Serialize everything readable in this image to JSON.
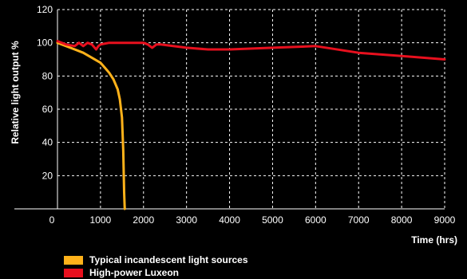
{
  "chart_data": {
    "type": "line",
    "xlabel": "Time (hrs)",
    "ylabel": "Relative light output %",
    "xlim": [
      0,
      9000
    ],
    "ylim": [
      0,
      120
    ],
    "origin_label": "0",
    "x_ticks": [
      "1000",
      "2000",
      "3000",
      "4000",
      "5000",
      "6000",
      "7000",
      "8000",
      "9000"
    ],
    "y_ticks": [
      "20",
      "40",
      "60",
      "80",
      "100",
      "120"
    ],
    "grid": true,
    "legend_position": "bottom-left",
    "series": [
      {
        "name": "Typical incandescent light sources",
        "color": "#FFB21A",
        "x": [
          0,
          200,
          400,
          600,
          800,
          1000,
          1100,
          1200,
          1300,
          1400,
          1450,
          1500,
          1530,
          1550,
          1560,
          1565
        ],
        "y": [
          100,
          98,
          96,
          94,
          91,
          88,
          85,
          82,
          78,
          72,
          66,
          55,
          35,
          10,
          2,
          0
        ]
      },
      {
        "name": "High-power Luxeon",
        "color": "#E8101E",
        "x": [
          0,
          200,
          400,
          500,
          600,
          700,
          800,
          900,
          950,
          1000,
          1200,
          1500,
          2000,
          2100,
          2200,
          2300,
          2400,
          3000,
          3500,
          4000,
          5000,
          6000,
          7000,
          8000,
          9000
        ],
        "y": [
          101,
          99,
          98,
          100,
          98,
          100,
          99,
          96,
          98,
          99,
          100,
          100,
          100,
          99,
          97,
          99,
          99,
          97,
          96,
          96,
          97,
          98,
          94,
          92,
          90
        ]
      }
    ]
  }
}
